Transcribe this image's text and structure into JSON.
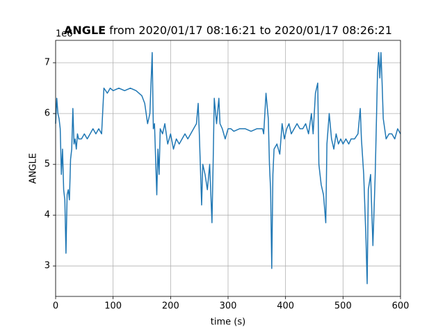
{
  "chart_data": {
    "type": "line",
    "title_bold": "ANGLE",
    "title": "from 2020/01/17 08:16:21 to 2020/01/17 08:26:21",
    "xlabel": "time (s)",
    "ylabel": "ANGLE",
    "y_offset_label": "1e6",
    "xlim": [
      0,
      600
    ],
    "xticks": [
      0,
      100,
      200,
      300,
      400,
      500,
      600
    ],
    "ylim": [
      2.4,
      7.44
    ],
    "yticks": [
      3,
      4,
      5,
      6,
      7
    ],
    "grid": true,
    "series": [
      {
        "color": "#1f77b4",
        "x": [
          0,
          2,
          4,
          6,
          8,
          10,
          12,
          14,
          16,
          18,
          20,
          22,
          24,
          26,
          28,
          30,
          32,
          34,
          36,
          38,
          40,
          45,
          50,
          55,
          60,
          65,
          70,
          75,
          80,
          84,
          90,
          95,
          100,
          110,
          120,
          130,
          140,
          150,
          155,
          160,
          164,
          168,
          170,
          172,
          176,
          178,
          180,
          182,
          186,
          190,
          195,
          200,
          205,
          210,
          215,
          220,
          225,
          230,
          235,
          240,
          245,
          248,
          250,
          254,
          256,
          260,
          264,
          268,
          272,
          274,
          276,
          280,
          284,
          286,
          290,
          295,
          300,
          305,
          310,
          320,
          330,
          340,
          350,
          360,
          362,
          366,
          370,
          372,
          374,
          376,
          378,
          380,
          385,
          390,
          394,
          398,
          402,
          406,
          410,
          415,
          420,
          425,
          430,
          435,
          440,
          445,
          448,
          452,
          456,
          458,
          462,
          466,
          470,
          472,
          476,
          480,
          484,
          488,
          492,
          496,
          500,
          505,
          510,
          514,
          520,
          526,
          530,
          532,
          536,
          540,
          542,
          544,
          548,
          552,
          556,
          560,
          562,
          564,
          566,
          568,
          570,
          575,
          580,
          585,
          590,
          595,
          600
        ],
        "values": [
          5.8,
          6.3,
          6.0,
          5.9,
          5.7,
          4.8,
          5.3,
          4.5,
          4.3,
          3.25,
          4.4,
          4.5,
          4.3,
          5.1,
          5.3,
          6.1,
          5.4,
          5.5,
          5.3,
          5.6,
          5.5,
          5.5,
          5.6,
          5.5,
          5.6,
          5.7,
          5.6,
          5.7,
          5.6,
          6.5,
          6.4,
          6.5,
          6.45,
          6.5,
          6.45,
          6.5,
          6.45,
          6.35,
          6.2,
          5.8,
          6.0,
          7.2,
          5.7,
          5.8,
          4.4,
          5.3,
          4.8,
          5.7,
          5.6,
          5.8,
          5.4,
          5.6,
          5.3,
          5.5,
          5.4,
          5.5,
          5.6,
          5.5,
          5.6,
          5.7,
          5.8,
          6.2,
          5.6,
          4.2,
          5.0,
          4.8,
          4.5,
          5.0,
          3.85,
          5.0,
          6.3,
          5.8,
          6.3,
          5.8,
          5.7,
          5.5,
          5.7,
          5.7,
          5.65,
          5.7,
          5.7,
          5.65,
          5.7,
          5.7,
          5.6,
          6.4,
          5.9,
          5.0,
          4.5,
          2.95,
          4.8,
          5.3,
          5.4,
          5.2,
          5.8,
          5.5,
          5.7,
          5.8,
          5.6,
          5.7,
          5.8,
          5.7,
          5.7,
          5.8,
          5.6,
          6.0,
          5.6,
          6.4,
          6.6,
          5.0,
          4.6,
          4.4,
          3.85,
          5.4,
          6.0,
          5.5,
          5.3,
          5.6,
          5.4,
          5.5,
          5.4,
          5.5,
          5.4,
          5.5,
          5.5,
          5.6,
          6.1,
          5.5,
          4.8,
          3.5,
          2.65,
          4.5,
          4.8,
          3.4,
          4.8,
          6.8,
          7.2,
          6.7,
          7.2,
          6.6,
          5.9,
          5.5,
          5.6,
          5.6,
          5.5,
          5.7,
          5.6
        ]
      }
    ]
  }
}
